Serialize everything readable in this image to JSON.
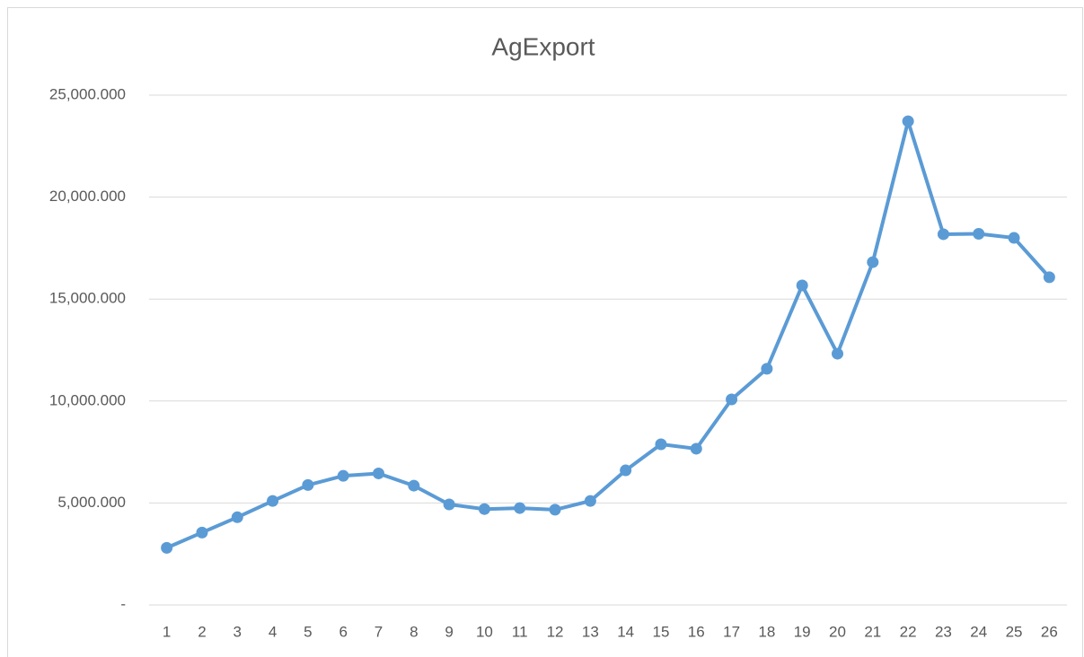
{
  "chart_data": {
    "type": "line",
    "title": "AgExport",
    "categories": [
      "1",
      "2",
      "3",
      "4",
      "5",
      "6",
      "7",
      "8",
      "9",
      "10",
      "11",
      "12",
      "13",
      "14",
      "15",
      "16",
      "17",
      "18",
      "19",
      "20",
      "21",
      "22",
      "23",
      "24",
      "25",
      "26"
    ],
    "series": [
      {
        "name": "AgExport",
        "color": "#5b9bd5",
        "values": [
          2800,
          3550,
          4300,
          5100,
          5880,
          6330,
          6450,
          5850,
          4930,
          4700,
          4750,
          4670,
          5100,
          6600,
          7880,
          7660,
          10080,
          11580,
          15670,
          12320,
          16810,
          23720,
          18180,
          18200,
          18000,
          16070
        ]
      }
    ],
    "ylim": [
      0,
      25000
    ],
    "yticks": [
      {
        "value": 0,
        "label": "-"
      },
      {
        "value": 5000,
        "label": "5,000.000"
      },
      {
        "value": 10000,
        "label": "10,000.000"
      },
      {
        "value": 15000,
        "label": "15,000.000"
      },
      {
        "value": 20000,
        "label": "20,000.000"
      },
      {
        "value": 25000,
        "label": "25,000.000"
      }
    ],
    "grid": true
  }
}
